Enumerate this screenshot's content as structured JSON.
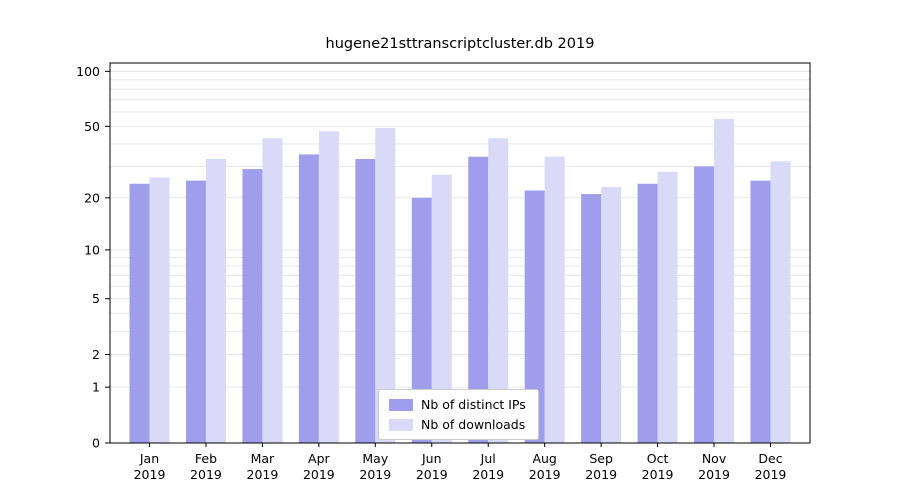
{
  "title": "hugene21sttranscriptcluster.db 2019",
  "colors": {
    "ips": "#9e9eec",
    "downloads": "#d9d9f8",
    "grid": "#e7e7e7",
    "axis": "#000000",
    "legend_border": "#cccccc",
    "background": "#ffffff"
  },
  "legend": {
    "items": [
      {
        "label": "Nb of distinct IPs",
        "color_key": "ips"
      },
      {
        "label": "Nb of downloads",
        "color_key": "downloads"
      }
    ]
  },
  "chart_data": {
    "type": "bar",
    "title": "hugene21sttranscriptcluster.db 2019",
    "categories": [
      "Jan",
      "Feb",
      "Mar",
      "Apr",
      "May",
      "Jun",
      "Jul",
      "Aug",
      "Sep",
      "Oct",
      "Nov",
      "Dec"
    ],
    "year": "2019",
    "series": [
      {
        "name": "Nb of distinct IPs",
        "color_key": "ips",
        "values": [
          24,
          25,
          29,
          35,
          33,
          20,
          34,
          22,
          21,
          24,
          30,
          25
        ]
      },
      {
        "name": "Nb of downloads",
        "color_key": "downloads",
        "values": [
          26,
          33,
          43,
          47,
          49,
          27,
          43,
          34,
          23,
          28,
          55,
          32
        ]
      }
    ],
    "yticks": [
      0,
      1,
      2,
      5,
      10,
      20,
      50,
      100
    ],
    "gridlines": [
      1,
      2,
      3,
      4,
      5,
      6,
      7,
      8,
      9,
      10,
      20,
      30,
      40,
      50,
      60,
      70,
      80,
      90,
      100
    ],
    "scale": "log1p",
    "ylim": [
      0,
      111
    ],
    "xlabel": "",
    "ylabel": "",
    "grid": true,
    "legend_position": "lower center"
  }
}
